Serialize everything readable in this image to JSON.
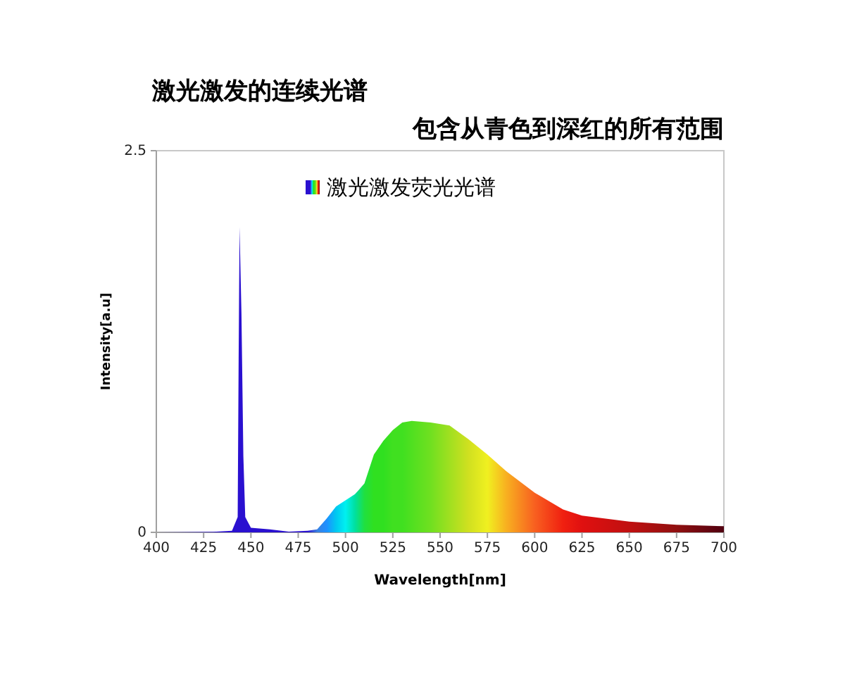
{
  "chart_data": {
    "type": "area",
    "title": "激光激发的连续光谱",
    "subtitle": "包含从青色到深红的所有范围",
    "xlabel": "Wavelength[nm]",
    "ylabel": "Intensity[a.u]",
    "xlim": [
      400,
      700
    ],
    "xticks": [
      400,
      425,
      450,
      475,
      500,
      525,
      550,
      575,
      600,
      625,
      650,
      675,
      700
    ],
    "ylim": [
      0,
      2.5
    ],
    "yticks": [
      0,
      2.5
    ],
    "grid": false,
    "legend": "top",
    "series": [
      {
        "name": "激光激发荧光光谱",
        "x": [
          400,
          430,
          440,
          443,
          443.5,
          444,
          445,
          446,
          447,
          450,
          460,
          470,
          480,
          485,
          490,
          495,
          500,
          505,
          510,
          515,
          520,
          525,
          530,
          535,
          545,
          555,
          565,
          575,
          585,
          600,
          615,
          625,
          650,
          675,
          700
        ],
        "values": [
          0,
          0.003,
          0.01,
          0.1,
          1.12,
          2.0,
          1.43,
          0.5,
          0.1,
          0.03,
          0.02,
          0.005,
          0.01,
          0.02,
          0.09,
          0.17,
          0.21,
          0.25,
          0.32,
          0.51,
          0.6,
          0.67,
          0.72,
          0.73,
          0.72,
          0.7,
          0.61,
          0.51,
          0.4,
          0.26,
          0.15,
          0.11,
          0.07,
          0.05,
          0.04
        ],
        "colors": [
          "#2a10d0",
          "#2a10d0",
          "#2a10d0",
          "#2a10d0",
          "#2a10d0",
          "#2a10d0",
          "#2a10d0",
          "#2a10d0",
          "#2a10d0",
          "#2a10d0",
          "#2a10d0",
          "#2a10d0",
          "#2a10d0",
          "#3a80e0",
          "#1e90ff",
          "#00c8f0",
          "#00f0f0",
          "#00e0a0",
          "#20e040",
          "#30e020",
          "#30e020",
          "#40e020",
          "#40e020",
          "#50e020",
          "#70e020",
          "#a0e020",
          "#d0e020",
          "#f0f020",
          "#f8b020",
          "#f86020",
          "#f02010",
          "#e01010",
          "#c01010",
          "#901010",
          "#500010"
        ]
      }
    ]
  }
}
